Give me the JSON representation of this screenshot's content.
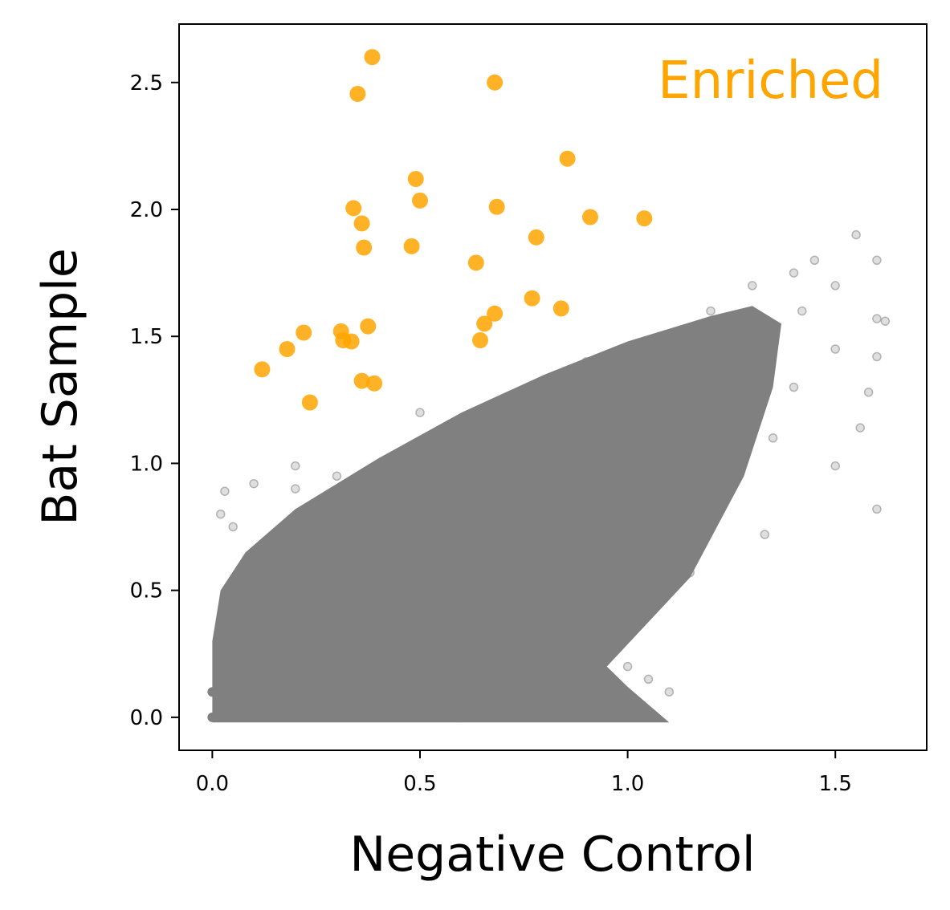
{
  "chart_data": {
    "type": "scatter",
    "title": "",
    "xlabel": "Negative Control",
    "ylabel": "Bat Sample",
    "xlim": [
      -0.08,
      1.72
    ],
    "ylim": [
      -0.13,
      2.73
    ],
    "xticks": [
      0.0,
      0.5,
      1.0,
      1.5
    ],
    "xtick_labels": [
      "0.0",
      "0.5",
      "1.0",
      "1.5"
    ],
    "yticks": [
      0.0,
      0.5,
      1.0,
      1.5,
      2.0,
      2.5
    ],
    "ytick_labels": [
      "0.0",
      "0.5",
      "1.0",
      "1.5",
      "2.0",
      "2.5"
    ],
    "grid": false,
    "annotation": {
      "text": "Enriched",
      "color": "#FFA500"
    },
    "series": [
      {
        "role": "background",
        "color": "#808080",
        "points": [
          [
            0.0,
            0.0
          ],
          [
            0.1,
            0.0
          ],
          [
            0.2,
            0.0
          ],
          [
            0.3,
            0.0
          ],
          [
            0.4,
            0.0
          ],
          [
            0.5,
            0.0
          ],
          [
            0.6,
            0.0
          ],
          [
            0.7,
            0.0
          ],
          [
            0.8,
            0.0
          ],
          [
            0.9,
            0.0
          ],
          [
            0.0,
            0.1
          ],
          [
            0.1,
            0.1
          ],
          [
            0.2,
            0.1
          ],
          [
            0.3,
            0.1
          ],
          [
            0.5,
            0.1
          ],
          [
            0.7,
            0.1
          ],
          [
            0.9,
            0.1
          ],
          [
            0.05,
            0.4
          ],
          [
            0.15,
            0.55
          ],
          [
            0.25,
            0.7
          ],
          [
            0.35,
            0.85
          ],
          [
            0.45,
            0.95
          ],
          [
            0.55,
            1.05
          ],
          [
            0.6,
            1.15
          ],
          [
            0.7,
            1.25
          ],
          [
            0.8,
            1.3
          ],
          [
            0.9,
            1.4
          ],
          [
            1.0,
            1.45
          ],
          [
            1.1,
            1.5
          ],
          [
            1.2,
            1.6
          ],
          [
            1.3,
            1.7
          ],
          [
            1.4,
            1.75
          ],
          [
            1.45,
            1.8
          ],
          [
            0.6,
            0.3
          ],
          [
            0.8,
            0.45
          ],
          [
            1.0,
            0.75
          ],
          [
            1.1,
            0.9
          ],
          [
            1.2,
            1.05
          ],
          [
            1.3,
            1.2
          ],
          [
            1.4,
            1.3
          ],
          [
            1.5,
            1.45
          ],
          [
            1.5,
            1.7
          ],
          [
            1.55,
            1.9
          ],
          [
            1.6,
            1.8
          ],
          [
            1.6,
            1.57
          ],
          [
            1.62,
            1.56
          ],
          [
            1.6,
            1.42
          ],
          [
            1.58,
            1.28
          ],
          [
            1.56,
            1.14
          ],
          [
            1.6,
            0.82
          ],
          [
            1.5,
            0.99
          ],
          [
            1.42,
            1.6
          ],
          [
            1.35,
            1.1
          ],
          [
            1.33,
            0.72
          ],
          [
            1.15,
            0.57
          ],
          [
            1.12,
            0.55
          ],
          [
            0.9,
            0.25
          ],
          [
            0.95,
            0.25
          ],
          [
            1.0,
            0.2
          ],
          [
            1.05,
            0.15
          ],
          [
            1.1,
            0.1
          ],
          [
            0.7,
            0.9
          ],
          [
            0.5,
            1.2
          ],
          [
            0.3,
            0.95
          ],
          [
            0.2,
            0.9
          ],
          [
            0.05,
            0.75
          ],
          [
            0.02,
            0.8
          ],
          [
            0.03,
            0.89
          ],
          [
            0.1,
            0.92
          ],
          [
            0.2,
            0.99
          ]
        ]
      },
      {
        "role": "enriched",
        "name": "Enriched",
        "color": "#FFA500",
        "points": [
          [
            0.385,
            2.6
          ],
          [
            0.35,
            2.455
          ],
          [
            0.68,
            2.5
          ],
          [
            0.855,
            2.2
          ],
          [
            0.49,
            2.12
          ],
          [
            0.5,
            2.035
          ],
          [
            0.34,
            2.005
          ],
          [
            0.36,
            1.945
          ],
          [
            0.685,
            2.01
          ],
          [
            0.91,
            1.97
          ],
          [
            1.04,
            1.965
          ],
          [
            0.365,
            1.85
          ],
          [
            0.48,
            1.855
          ],
          [
            0.78,
            1.89
          ],
          [
            0.635,
            1.79
          ],
          [
            0.77,
            1.65
          ],
          [
            0.84,
            1.61
          ],
          [
            0.68,
            1.59
          ],
          [
            0.655,
            1.55
          ],
          [
            0.645,
            1.485
          ],
          [
            0.375,
            1.54
          ],
          [
            0.31,
            1.52
          ],
          [
            0.22,
            1.515
          ],
          [
            0.315,
            1.485
          ],
          [
            0.335,
            1.48
          ],
          [
            0.18,
            1.45
          ],
          [
            0.12,
            1.37
          ],
          [
            0.36,
            1.325
          ],
          [
            0.39,
            1.315
          ],
          [
            0.235,
            1.24
          ]
        ]
      }
    ]
  }
}
